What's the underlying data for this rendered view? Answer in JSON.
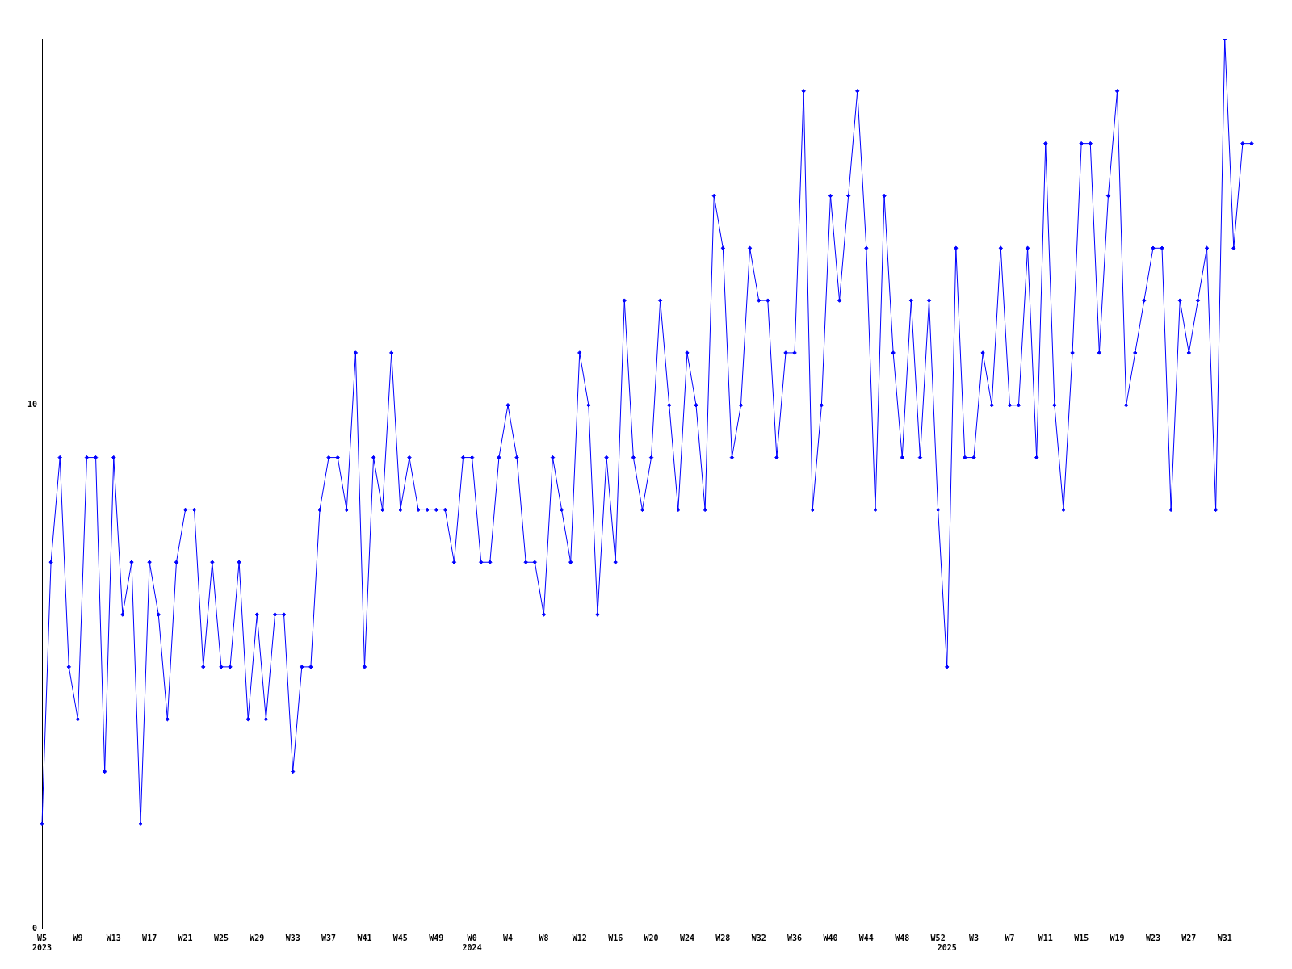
{
  "chart_data": {
    "type": "line",
    "categories": [
      "W5\n2023",
      null,
      null,
      null,
      "W9",
      null,
      null,
      null,
      "W13",
      null,
      null,
      null,
      "W17",
      null,
      null,
      null,
      "W21",
      null,
      null,
      null,
      "W25",
      null,
      null,
      null,
      "W29",
      null,
      null,
      null,
      "W33",
      null,
      null,
      null,
      "W37",
      null,
      null,
      null,
      "W41",
      null,
      null,
      null,
      "W45",
      null,
      null,
      null,
      "W49",
      null,
      null,
      null,
      "W0\n2024",
      null,
      null,
      null,
      "W4",
      null,
      null,
      null,
      "W8",
      null,
      null,
      null,
      "W12",
      null,
      null,
      null,
      "W16",
      null,
      null,
      null,
      "W20",
      null,
      null,
      null,
      "W24",
      null,
      null,
      null,
      "W28",
      null,
      null,
      null,
      "W32",
      null,
      null,
      null,
      "W36",
      null,
      null,
      null,
      "W40",
      null,
      null,
      null,
      "W44",
      null,
      null,
      null,
      "W48",
      null,
      null,
      null,
      "W52",
      "\n2025",
      null,
      null,
      "W3",
      null,
      null,
      null,
      "W7",
      null,
      null,
      null,
      "W11",
      null,
      null,
      null,
      "W15",
      null,
      null,
      null,
      "W19",
      null,
      null,
      null,
      "W23",
      null,
      null,
      null,
      "W27",
      null,
      null,
      null,
      "W31",
      null,
      null,
      null
    ],
    "values": [
      2,
      7,
      9,
      5,
      4,
      9,
      9,
      3,
      9,
      6,
      7,
      2,
      7,
      6,
      4,
      7,
      8,
      8,
      5,
      7,
      5,
      5,
      7,
      4,
      6,
      4,
      6,
      6,
      3,
      5,
      5,
      8,
      9,
      9,
      8,
      11,
      5,
      9,
      8,
      11,
      8,
      9,
      8,
      8,
      8,
      8,
      7,
      9,
      9,
      7,
      7,
      9,
      10,
      9,
      7,
      7,
      6,
      9,
      8,
      7,
      11,
      10,
      6,
      9,
      7,
      12,
      9,
      8,
      9,
      12,
      10,
      8,
      11,
      10,
      8,
      14,
      13,
      9,
      10,
      13,
      12,
      12,
      9,
      11,
      11,
      16,
      8,
      10,
      14,
      12,
      14,
      16,
      13,
      8,
      14,
      11,
      9,
      12,
      9,
      12,
      8,
      5,
      13,
      9,
      9,
      11,
      10,
      13,
      10,
      10,
      13,
      9,
      15,
      10,
      8,
      11,
      15,
      15,
      11,
      14,
      16,
      10,
      11,
      12,
      13,
      13,
      8,
      12,
      11,
      12,
      13,
      8,
      17,
      13,
      15,
      15
    ],
    "color": "#0000ff",
    "ylim": [
      0,
      17
    ],
    "yticks": [
      0,
      10
    ],
    "grid": "y",
    "legend": false,
    "marker": "diamond",
    "line_style": "solid"
  }
}
